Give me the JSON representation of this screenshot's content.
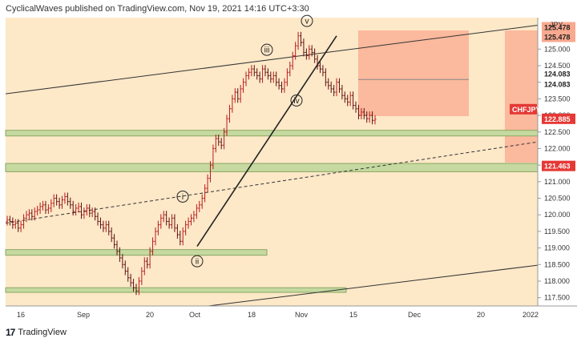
{
  "header": {
    "text": "CyclicalWaves published on TradingView.com, Nov 19, 2021 14:16 UTC+3:30"
  },
  "footer": {
    "logo_text": "TradingView"
  },
  "chart_data": {
    "type": "candlestick",
    "symbol": "CHFJPY",
    "currency": "JPY",
    "y_ticks": [
      "125.000",
      "124.500",
      "124.000",
      "123.500",
      "123.000",
      "122.500",
      "122.000",
      "121.500",
      "121.000",
      "120.500",
      "120.000",
      "119.500",
      "119.000",
      "118.500",
      "118.000",
      "117.500"
    ],
    "y_tick_values": [
      125.0,
      124.5,
      124.0,
      123.5,
      123.0,
      122.5,
      122.0,
      121.5,
      121.0,
      120.5,
      120.0,
      119.5,
      119.0,
      118.5,
      118.0,
      117.5
    ],
    "ylim": [
      117.25,
      125.95
    ],
    "x_ticks": [
      "16",
      "Sep",
      "20",
      "Oct",
      "18",
      "Nov",
      "15",
      "Dec",
      "20",
      "2022"
    ],
    "price_labels": {
      "top": "125.478",
      "top2": "125.478",
      "mid1": "124.083",
      "mid2": "124.083",
      "current_symbol": "CHFJPY",
      "current": "122.885",
      "support": "121.463"
    },
    "price_label_values": {
      "top": 125.478,
      "mid1": 124.083,
      "current": 122.885,
      "support": 121.463
    },
    "wave_labels": [
      "i",
      "ii",
      "iii",
      "iv",
      "v"
    ],
    "price_series_close": [
      119.85,
      119.8,
      119.7,
      119.75,
      119.6,
      119.7,
      119.9,
      120.0,
      120.05,
      119.95,
      120.1,
      120.15,
      120.25,
      120.3,
      120.15,
      120.2,
      120.35,
      120.5,
      120.4,
      120.3,
      120.45,
      120.55,
      120.4,
      120.3,
      120.1,
      120.2,
      120.25,
      120.0,
      120.1,
      120.2,
      120.05,
      120.1,
      119.95,
      119.8,
      119.7,
      119.6,
      119.7,
      119.5,
      119.3,
      119.1,
      118.9,
      118.7,
      118.5,
      118.3,
      118.1,
      117.95,
      117.8,
      117.7,
      118.0,
      118.3,
      118.6,
      118.5,
      118.9,
      119.2,
      119.5,
      119.7,
      119.9,
      120.0,
      119.8,
      119.7,
      119.9,
      119.6,
      119.4,
      119.2,
      119.5,
      119.7,
      119.8,
      119.9,
      120.0,
      120.2,
      120.3,
      120.5,
      120.8,
      121.1,
      121.5,
      122.0,
      122.3,
      122.2,
      122.1,
      122.5,
      122.9,
      123.2,
      123.5,
      123.7,
      123.5,
      123.8,
      124.0,
      124.2,
      124.3,
      124.4,
      124.3,
      124.2,
      124.1,
      124.4,
      124.3,
      124.2,
      124.1,
      124.2,
      124.0,
      123.9,
      123.8,
      124.0,
      124.3,
      124.5,
      124.8,
      125.1,
      125.4,
      125.2,
      124.9,
      124.8,
      125.0,
      124.9,
      124.7,
      124.5,
      124.4,
      124.3,
      124.0,
      123.9,
      123.8,
      123.7,
      124.0,
      123.8,
      123.6,
      123.5,
      123.4,
      123.6,
      123.3,
      123.2,
      123.0,
      123.1,
      123.0,
      122.9,
      123.0,
      122.85,
      122.885
    ]
  }
}
